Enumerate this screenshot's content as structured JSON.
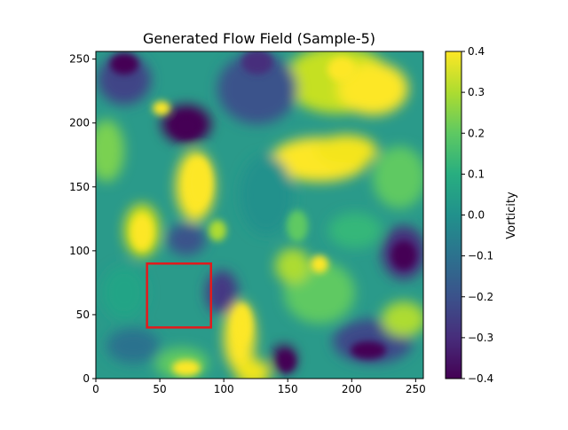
{
  "chart_data": {
    "type": "heatmap",
    "title": "Generated Flow Field (Sample-5)",
    "xlabel": "",
    "ylabel": "",
    "xlim": [
      0,
      256
    ],
    "ylim": [
      0,
      256
    ],
    "x_ticks": [
      0,
      50,
      100,
      150,
      200,
      250
    ],
    "y_ticks": [
      0,
      50,
      100,
      150,
      200,
      250
    ],
    "colormap": "viridis",
    "colorbar": {
      "label": "Vorticity",
      "range": [
        -0.4,
        0.4
      ],
      "ticks": [
        "0.4",
        "0.3",
        "0.2",
        "0.1",
        "0.0",
        "−0.1",
        "−0.2",
        "−0.3",
        "−0.4"
      ]
    },
    "highlight_box": {
      "x_range": [
        40,
        90
      ],
      "y_range": [
        40,
        90
      ],
      "color": "#e31a1c"
    }
  }
}
